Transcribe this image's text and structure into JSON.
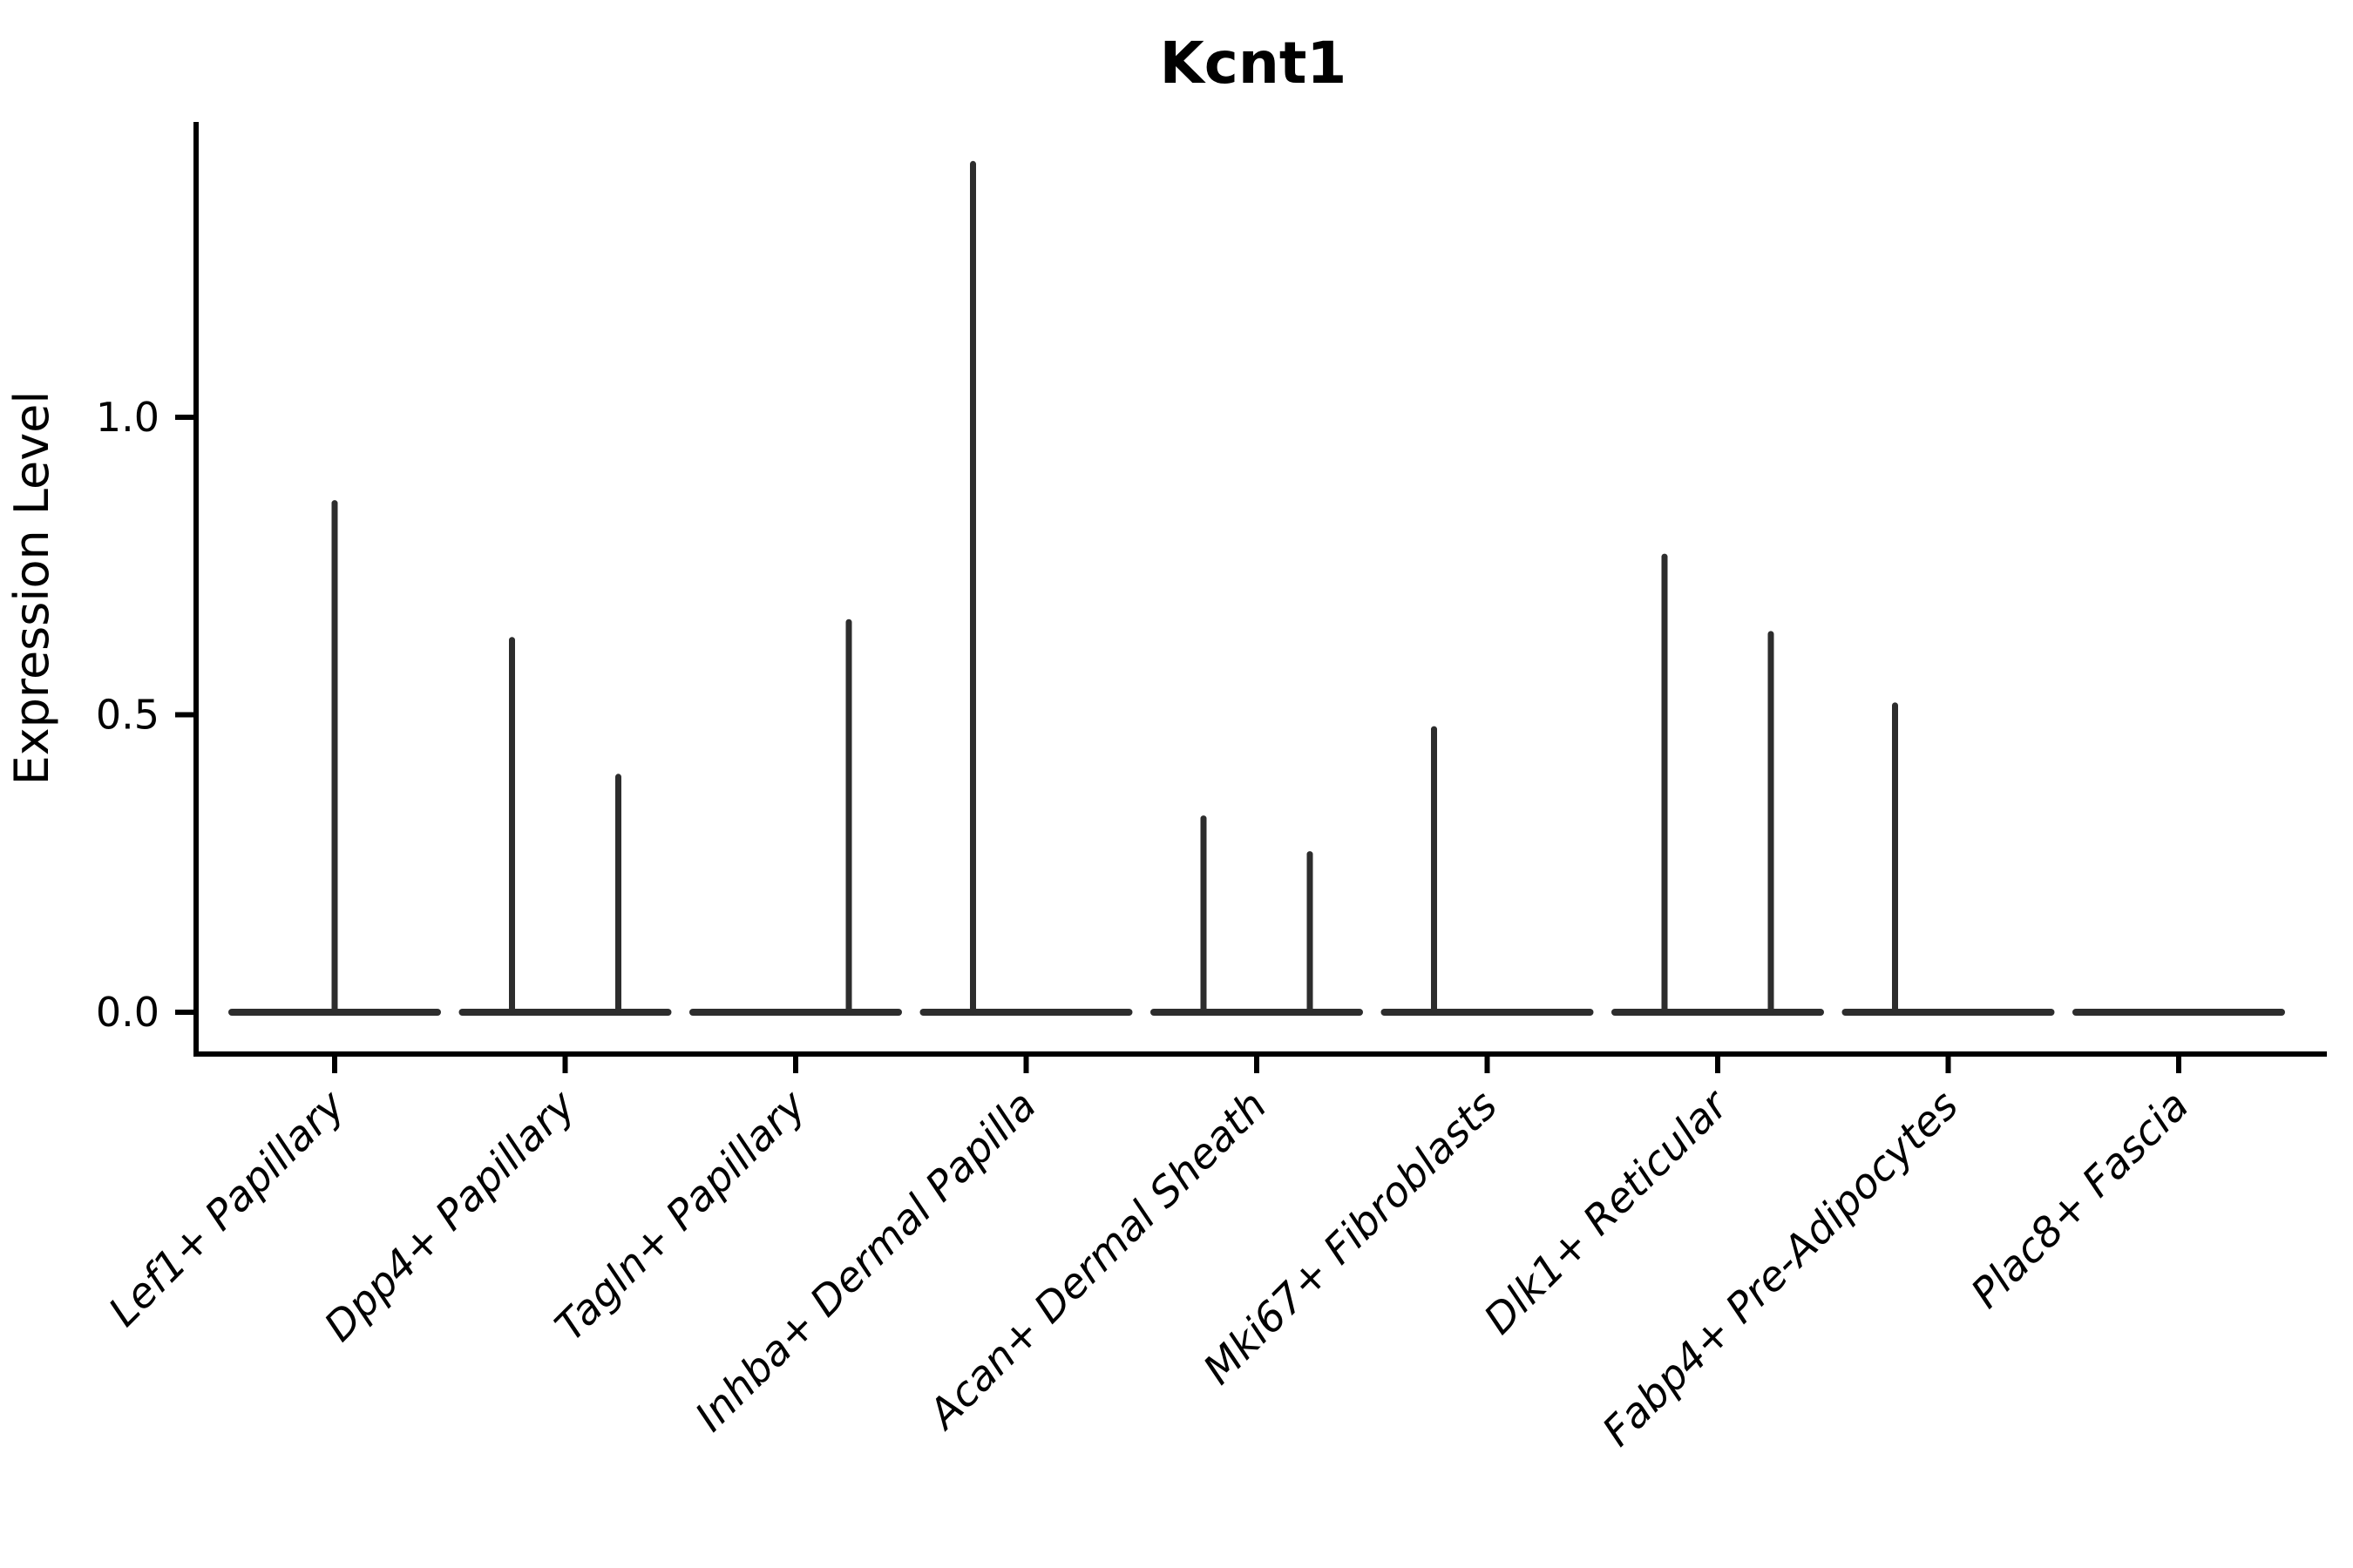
{
  "chart_data": {
    "type": "violin",
    "title": "Kcnt1",
    "ylabel": "Expression Level",
    "yticks": [
      0.0,
      0.5,
      1.0
    ],
    "ylim": [
      0,
      1.5
    ],
    "grid": false,
    "legend": "none",
    "categories": [
      "Lef1+ Papillary",
      "Dpp4+ Papillary",
      "Tagln+ Papillary",
      "Inhba+ Dermal Papilla",
      "Acan+ Dermal Sheath",
      "Mki67+ Fibroblasts",
      "Dlk1+ Reticular",
      "Fabp4+ Pre-Adipocytes",
      "Plac8+ Fascia"
    ],
    "violins": [
      {
        "category": "Lef1+ Papillary",
        "spikes": [
          {
            "position": "center",
            "max_expression": 0.86
          }
        ]
      },
      {
        "category": "Dpp4+ Papillary",
        "spikes": [
          {
            "position": "left",
            "max_expression": 0.63
          },
          {
            "position": "right",
            "max_expression": 0.4
          }
        ]
      },
      {
        "category": "Tagln+ Papillary",
        "spikes": [
          {
            "position": "right",
            "max_expression": 0.66
          }
        ]
      },
      {
        "category": "Inhba+ Dermal Papilla",
        "spikes": [
          {
            "position": "left",
            "max_expression": 1.43
          }
        ]
      },
      {
        "category": "Acan+ Dermal Sheath",
        "spikes": [
          {
            "position": "left",
            "max_expression": 0.33
          },
          {
            "position": "right",
            "max_expression": 0.27
          }
        ]
      },
      {
        "category": "Mki67+ Fibroblasts",
        "spikes": [
          {
            "position": "left",
            "max_expression": 0.48
          }
        ]
      },
      {
        "category": "Dlk1+ Reticular",
        "spikes": [
          {
            "position": "left",
            "max_expression": 0.77
          },
          {
            "position": "right",
            "max_expression": 0.64
          }
        ]
      },
      {
        "category": "Fabp4+ Pre-Adipocytes",
        "spikes": [
          {
            "position": "left",
            "max_expression": 0.52
          }
        ]
      },
      {
        "category": "Plac8+ Fascia",
        "spikes": []
      }
    ],
    "colors": {
      "violin": "#2d2d2d",
      "axis": "#000000",
      "background": "#ffffff"
    }
  }
}
